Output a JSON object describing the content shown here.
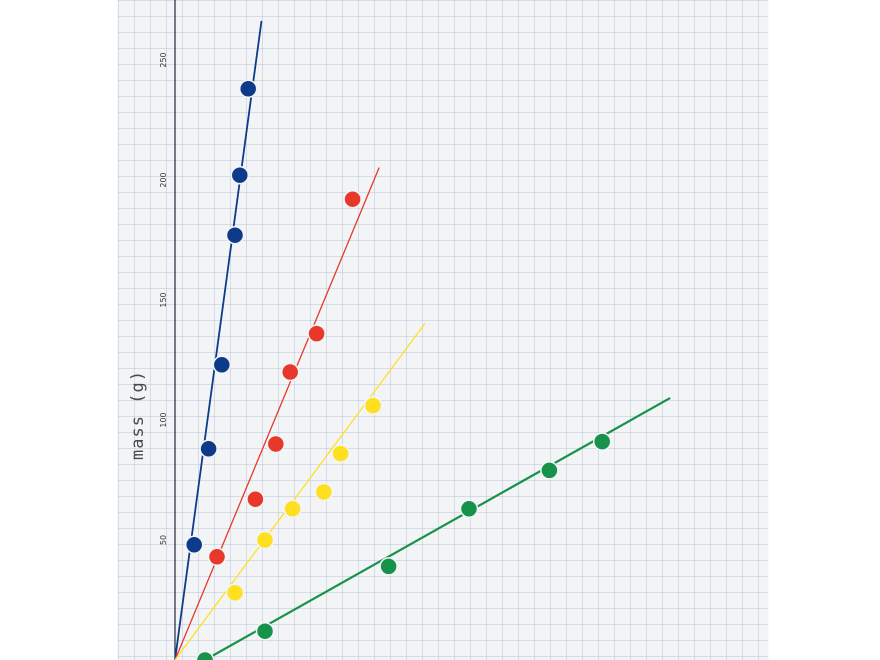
{
  "chart_data": {
    "type": "scatter",
    "title": "",
    "ylabel": "mass (g)",
    "xlabel": "",
    "ylim": [
      0,
      270
    ],
    "yticks": [
      "50",
      "100",
      "150",
      "200",
      "250"
    ],
    "grid": true,
    "series": [
      {
        "color": "#0d3b8a",
        "points": [
          [
            1.6,
            48
          ],
          [
            2.8,
            88
          ],
          [
            3.9,
            123
          ],
          [
            5.0,
            177
          ],
          [
            5.4,
            202
          ],
          [
            6.1,
            238
          ]
        ],
        "fit_line": [
          [
            0,
            0
          ],
          [
            7.2,
            266
          ]
        ]
      },
      {
        "color": "#e8372b",
        "points": [
          [
            3.5,
            43
          ],
          [
            6.7,
            67
          ],
          [
            8.4,
            90
          ],
          [
            9.6,
            120
          ],
          [
            11.8,
            136
          ],
          [
            14.8,
            192
          ]
        ],
        "fit_line": [
          [
            0,
            0
          ],
          [
            17.0,
            205
          ]
        ]
      },
      {
        "color": "#ffe020",
        "points": [
          [
            5.0,
            28
          ],
          [
            7.5,
            50
          ],
          [
            9.8,
            63
          ],
          [
            12.4,
            70
          ],
          [
            13.8,
            86
          ],
          [
            16.5,
            106
          ]
        ],
        "fit_line": [
          [
            0,
            0
          ],
          [
            20.8,
            140
          ]
        ]
      },
      {
        "color": "#17924a",
        "points": [
          [
            2.5,
            0
          ],
          [
            7.5,
            12
          ],
          [
            17.8,
            39
          ],
          [
            24.5,
            63
          ],
          [
            31.2,
            79
          ],
          [
            35.6,
            91
          ]
        ],
        "fit_line": [
          [
            2.5,
            0
          ],
          [
            41.2,
            109
          ]
        ]
      }
    ]
  }
}
